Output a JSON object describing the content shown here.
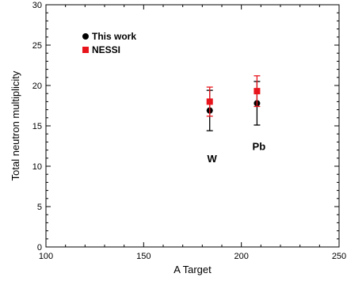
{
  "chart_data": {
    "type": "scatter",
    "xlabel": "A Target",
    "ylabel": "Total neutron multiplicity",
    "xlim": [
      100,
      250
    ],
    "ylim": [
      0,
      30
    ],
    "xticks": [
      100,
      150,
      200,
      250
    ],
    "yticks": [
      0,
      5,
      10,
      15,
      20,
      25,
      30
    ],
    "xtick_labels": [
      "100",
      "150",
      "200",
      "250"
    ],
    "ytick_labels": [
      "0",
      "5",
      "10",
      "15",
      "20",
      "25",
      "30"
    ],
    "grid": false,
    "legend_position": "top-left",
    "series": [
      {
        "name": "This work",
        "marker": "circle",
        "color": "#000000",
        "points": [
          {
            "x": 183.8,
            "y": 16.9,
            "err_low": 2.5,
            "err_high": 2.5
          },
          {
            "x": 208.0,
            "y": 17.8,
            "err_low": 2.7,
            "err_high": 2.7
          }
        ]
      },
      {
        "name": "NESSI",
        "marker": "square",
        "color": "#e8141c",
        "points": [
          {
            "x": 183.8,
            "y": 18.0,
            "err_low": 1.8,
            "err_high": 1.8
          },
          {
            "x": 208.0,
            "y": 19.3,
            "err_low": 1.9,
            "err_high": 1.9
          }
        ]
      }
    ],
    "annotations": [
      {
        "text": "W",
        "x": 185,
        "y": 10.5
      },
      {
        "text": "Pb",
        "x": 209,
        "y": 12
      }
    ]
  }
}
